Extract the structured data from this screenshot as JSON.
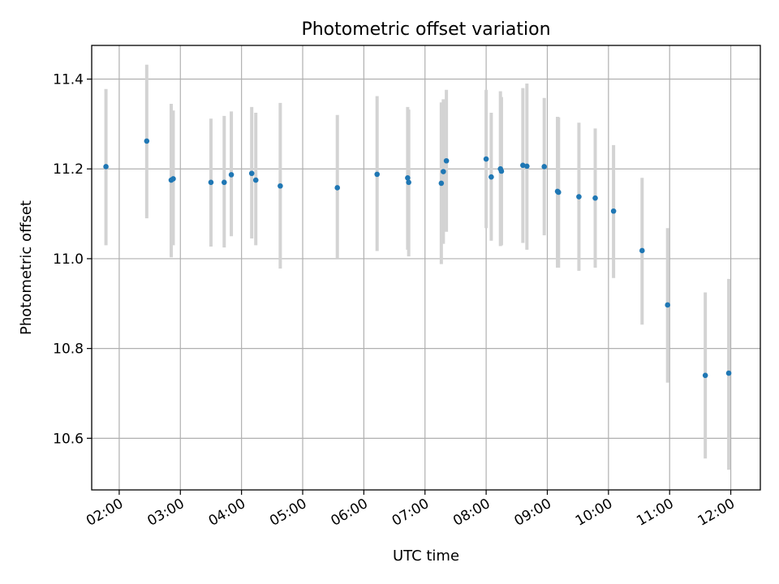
{
  "chart_data": {
    "type": "scatter",
    "title": "Photometric offset variation",
    "xlabel": "UTC time",
    "ylabel": "Photometric offset",
    "xlim": [
      "01:33",
      "12:29"
    ],
    "ylim": [
      10.485,
      11.475
    ],
    "grid": true,
    "x_ticks": [
      "02:00",
      "03:00",
      "04:00",
      "05:00",
      "06:00",
      "07:00",
      "08:00",
      "09:00",
      "10:00",
      "11:00",
      "12:00"
    ],
    "y_ticks": [
      10.6,
      10.8,
      11.0,
      11.2,
      11.4
    ],
    "colors": {
      "points": "#1f77b4",
      "error_bars": "#d3d3d3",
      "grid": "#b0b0b0"
    },
    "points": [
      {
        "x": "01:47",
        "y": 11.205,
        "err_low": 11.03,
        "err_high": 11.378
      },
      {
        "x": "02:27",
        "y": 11.262,
        "err_low": 11.09,
        "err_high": 11.432
      },
      {
        "x": "02:51",
        "y": 11.175,
        "err_low": 11.003,
        "err_high": 11.345
      },
      {
        "x": "02:53",
        "y": 11.178,
        "err_low": 11.03,
        "err_high": 11.33
      },
      {
        "x": "03:30",
        "y": 11.17,
        "err_low": 11.027,
        "err_high": 11.312
      },
      {
        "x": "03:43",
        "y": 11.17,
        "err_low": 11.025,
        "err_high": 11.318
      },
      {
        "x": "03:50",
        "y": 11.187,
        "err_low": 11.05,
        "err_high": 11.328
      },
      {
        "x": "04:10",
        "y": 11.19,
        "err_low": 11.045,
        "err_high": 11.338
      },
      {
        "x": "04:14",
        "y": 11.175,
        "err_low": 11.03,
        "err_high": 11.325
      },
      {
        "x": "04:38",
        "y": 11.162,
        "err_low": 10.978,
        "err_high": 11.347
      },
      {
        "x": "05:34",
        "y": 11.158,
        "err_low": 11.0,
        "err_high": 11.32
      },
      {
        "x": "06:13",
        "y": 11.188,
        "err_low": 11.017,
        "err_high": 11.362
      },
      {
        "x": "06:43",
        "y": 11.18,
        "err_low": 11.02,
        "err_high": 11.338
      },
      {
        "x": "06:44",
        "y": 11.17,
        "err_low": 11.005,
        "err_high": 11.332
      },
      {
        "x": "07:16",
        "y": 11.168,
        "err_low": 10.988,
        "err_high": 11.348
      },
      {
        "x": "07:18",
        "y": 11.194,
        "err_low": 11.033,
        "err_high": 11.355
      },
      {
        "x": "07:21",
        "y": 11.218,
        "err_low": 11.06,
        "err_high": 11.376
      },
      {
        "x": "08:00",
        "y": 11.222,
        "err_low": 11.068,
        "err_high": 11.376
      },
      {
        "x": "08:05",
        "y": 11.182,
        "err_low": 11.04,
        "err_high": 11.325
      },
      {
        "x": "08:14",
        "y": 11.2,
        "err_low": 11.028,
        "err_high": 11.373
      },
      {
        "x": "08:15",
        "y": 11.195,
        "err_low": 11.03,
        "err_high": 11.36
      },
      {
        "x": "08:36",
        "y": 11.208,
        "err_low": 11.035,
        "err_high": 11.38
      },
      {
        "x": "08:40",
        "y": 11.206,
        "err_low": 11.02,
        "err_high": 11.39
      },
      {
        "x": "08:57",
        "y": 11.205,
        "err_low": 11.052,
        "err_high": 11.358
      },
      {
        "x": "09:10",
        "y": 11.15,
        "err_low": 10.98,
        "err_high": 11.316
      },
      {
        "x": "09:11",
        "y": 11.148,
        "err_low": 10.98,
        "err_high": 11.315
      },
      {
        "x": "09:31",
        "y": 11.138,
        "err_low": 10.973,
        "err_high": 11.303
      },
      {
        "x": "09:47",
        "y": 11.135,
        "err_low": 10.98,
        "err_high": 11.29
      },
      {
        "x": "10:05",
        "y": 11.106,
        "err_low": 10.957,
        "err_high": 11.253
      },
      {
        "x": "10:33",
        "y": 11.018,
        "err_low": 10.853,
        "err_high": 11.18
      },
      {
        "x": "10:58",
        "y": 10.897,
        "err_low": 10.724,
        "err_high": 11.068
      },
      {
        "x": "11:35",
        "y": 10.74,
        "err_low": 10.555,
        "err_high": 10.925
      },
      {
        "x": "11:58",
        "y": 10.745,
        "err_low": 10.53,
        "err_high": 10.955
      }
    ]
  }
}
